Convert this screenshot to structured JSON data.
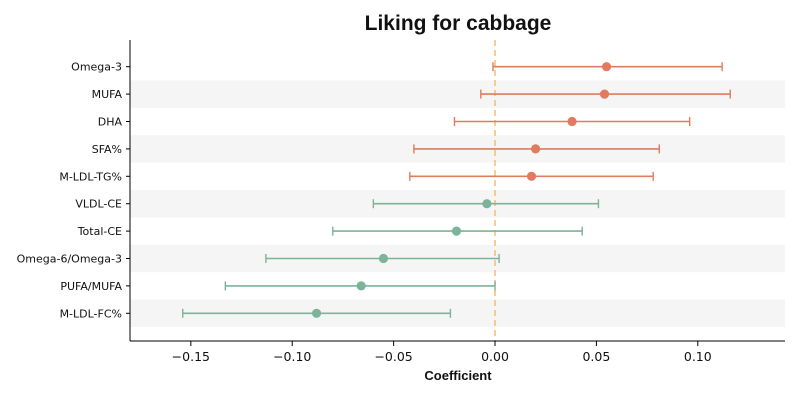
{
  "chart_data": {
    "type": "forest",
    "title": "Liking for cabbage",
    "xlabel": "Coefficient",
    "xlim": [
      -0.18,
      0.143
    ],
    "xticks": [
      -0.15,
      -0.1,
      -0.05,
      0.0,
      0.05,
      0.1
    ],
    "xtick_labels": [
      "−0.15",
      "−0.10",
      "−0.05",
      "0.00",
      "0.05",
      "0.10"
    ],
    "reference_line": 0.0,
    "colors": {
      "positive": "#e07b5f",
      "negative": "#7db39a",
      "reference": "#f3c27a",
      "stripe": "#f5f5f5"
    },
    "rows": [
      {
        "label": "Omega-3",
        "estimate": 0.055,
        "ci": [
          -0.001,
          0.112
        ]
      },
      {
        "label": "MUFA",
        "estimate": 0.054,
        "ci": [
          -0.007,
          0.116
        ]
      },
      {
        "label": "DHA",
        "estimate": 0.038,
        "ci": [
          -0.02,
          0.096
        ]
      },
      {
        "label": "SFA%",
        "estimate": 0.02,
        "ci": [
          -0.04,
          0.081
        ]
      },
      {
        "label": "M-LDL-TG%",
        "estimate": 0.018,
        "ci": [
          -0.042,
          0.078
        ]
      },
      {
        "label": "VLDL-CE",
        "estimate": -0.004,
        "ci": [
          -0.06,
          0.051
        ]
      },
      {
        "label": "Total-CE",
        "estimate": -0.019,
        "ci": [
          -0.08,
          0.043
        ]
      },
      {
        "label": "Omega-6/Omega-3",
        "estimate": -0.055,
        "ci": [
          -0.113,
          0.002
        ]
      },
      {
        "label": "PUFA/MUFA",
        "estimate": -0.066,
        "ci": [
          -0.133,
          0.0
        ]
      },
      {
        "label": "M-LDL-FC%",
        "estimate": -0.088,
        "ci": [
          -0.154,
          -0.022
        ]
      }
    ]
  }
}
